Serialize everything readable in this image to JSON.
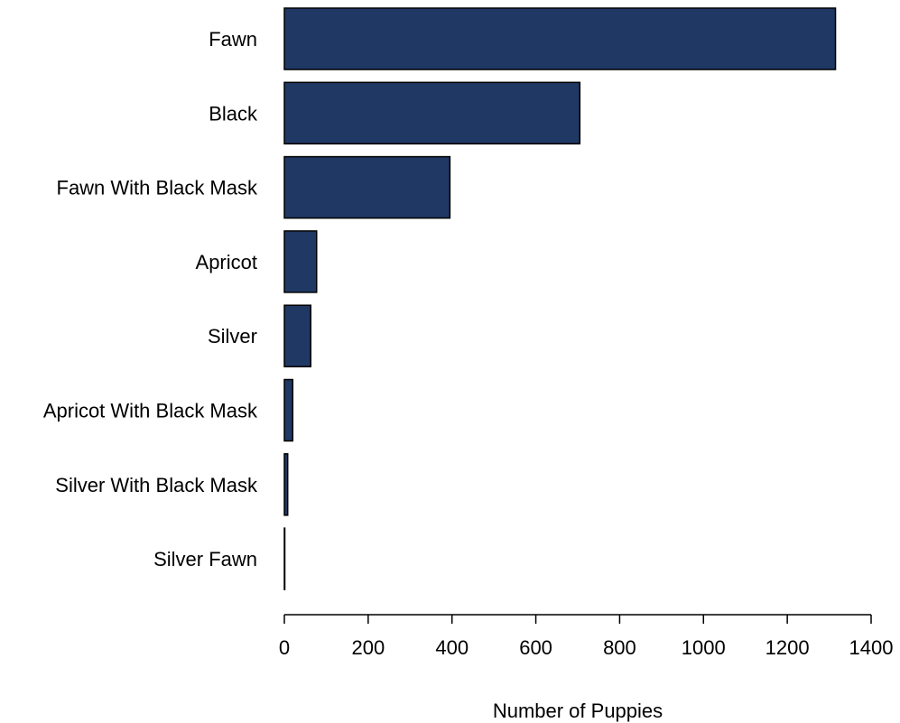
{
  "chart_data": {
    "type": "bar",
    "orientation": "horizontal",
    "categories": [
      "Fawn",
      "Black",
      "Fawn With Black Mask",
      "Apricot",
      "Silver",
      "Apricot With Black Mask",
      "Silver With Black Mask",
      "Silver Fawn"
    ],
    "values": [
      1315,
      705,
      395,
      77,
      63,
      20,
      8,
      1
    ],
    "xlabel": "Number of Puppies",
    "ylabel": "",
    "xlim": [
      0,
      1400
    ],
    "x_ticks": [
      "0",
      "200",
      "400",
      "600",
      "800",
      "1000",
      "1200",
      "1400"
    ],
    "bar_color": "#1f3864",
    "bar_edge_color": "#000000",
    "grid": false,
    "legend": "none"
  }
}
